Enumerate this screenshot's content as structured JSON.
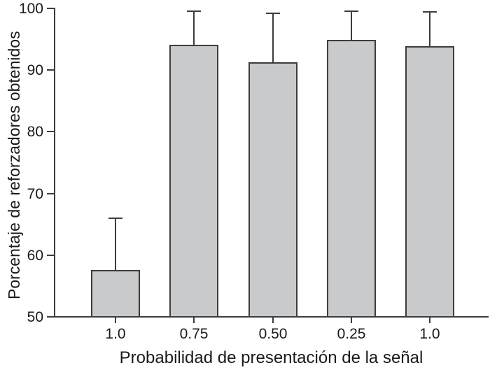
{
  "chart_data": {
    "type": "bar",
    "title": "",
    "xlabel": "Probabilidad de presentación de la señal",
    "ylabel": "Porcentaje de reforzadores obtenidos",
    "categories": [
      "1.0",
      "0.75",
      "0.50",
      "0.25",
      "1.0"
    ],
    "values": [
      57.5,
      94.0,
      91.2,
      94.8,
      93.8
    ],
    "errors_upper": [
      8.5,
      5.5,
      8.0,
      4.8,
      5.6
    ],
    "ylim": [
      50,
      100
    ],
    "yticks": [
      50,
      60,
      70,
      80,
      90,
      100
    ],
    "grid": false,
    "legend": null,
    "colors": {
      "bar_fill": "#c9cacb",
      "bar_border": "#3d3d3d",
      "axis": "#3d3d3d",
      "text": "#1a1a1a",
      "background": "#ffffff"
    }
  }
}
